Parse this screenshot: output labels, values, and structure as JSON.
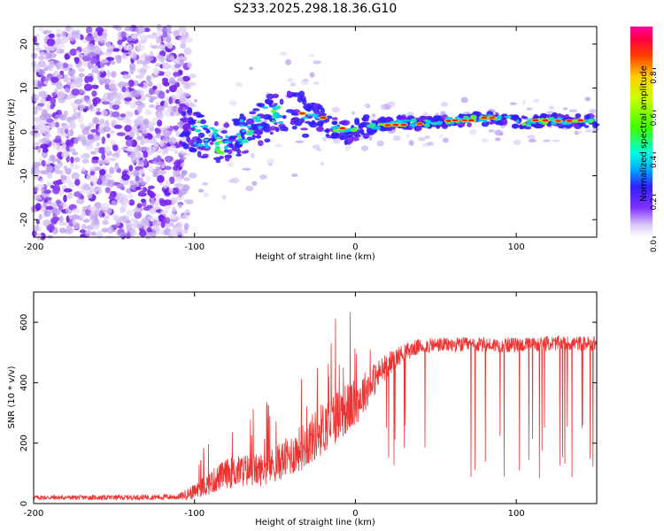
{
  "title": "S233.2025.298.18.36.G10",
  "chart_data": [
    {
      "type": "heatmap",
      "title": "S233.2025.298.18.36.G10",
      "xlabel": "Height of straight line (km)",
      "ylabel": "Frequency (Hz)",
      "xlim": [
        -200,
        150
      ],
      "ylim": [
        -24,
        24
      ],
      "x_ticks": [
        "-200",
        "-100",
        "0",
        "100"
      ],
      "x_tick_values": [
        -200,
        -100,
        0,
        100
      ],
      "y_ticks": [
        "20",
        "10",
        "0",
        "-10",
        "-20"
      ],
      "y_tick_values": [
        20,
        10,
        0,
        -10,
        -20
      ],
      "colorbar": {
        "label": "Normalized spectral amplitude",
        "range": [
          0,
          1
        ],
        "ticks": [
          "0.0",
          "0.2",
          "0.4",
          "0.6",
          "0.8"
        ],
        "tick_values": [
          0.0,
          0.2,
          0.4,
          0.6,
          0.8
        ]
      },
      "ridge": {
        "x": [
          -105,
          -95,
          -85,
          -75,
          -65,
          -55,
          -45,
          -35,
          -25,
          -15,
          -5,
          5,
          15,
          25,
          35,
          45,
          55,
          65,
          75,
          85,
          95,
          105,
          115,
          125,
          135,
          150
        ],
        "frequency": [
          1,
          -1,
          -2,
          -1,
          1,
          3,
          4,
          4,
          4,
          1,
          0,
          1,
          1.5,
          2,
          2,
          2,
          2.5,
          2.5,
          3,
          3,
          3,
          2,
          2.5,
          2.5,
          2.5,
          2.5
        ]
      }
    },
    {
      "type": "line",
      "xlabel": "Height of straight line (km)",
      "ylabel": "SNR (10 * v/v)",
      "xlim": [
        -200,
        150
      ],
      "ylim": [
        0,
        700
      ],
      "x_ticks": [
        "-200",
        "-100",
        "0",
        "100"
      ],
      "x_tick_values": [
        -200,
        -100,
        0,
        100
      ],
      "y_ticks": [
        "0",
        "200",
        "400",
        "600"
      ],
      "y_tick_values": [
        0,
        200,
        400,
        600
      ],
      "series": [
        {
          "name": "SNR",
          "color": "#ee3333",
          "envelope_x": [
            -200,
            -150,
            -110,
            -100,
            -90,
            -80,
            -70,
            -60,
            -50,
            -40,
            -30,
            -20,
            -10,
            0,
            10,
            20,
            30,
            40,
            50,
            60,
            70,
            80,
            90,
            100,
            110,
            120,
            130,
            140,
            150
          ],
          "envelope_mean": [
            20,
            20,
            22,
            40,
            70,
            100,
            110,
            110,
            130,
            160,
            200,
            250,
            300,
            330,
            400,
            460,
            500,
            520,
            525,
            525,
            525,
            525,
            525,
            525,
            525,
            530,
            530,
            530,
            530
          ],
          "envelope_noise": [
            8,
            8,
            10,
            25,
            40,
            50,
            55,
            55,
            60,
            70,
            80,
            90,
            90,
            80,
            60,
            40,
            30,
            25,
            25,
            25,
            25,
            25,
            25,
            25,
            25,
            25,
            25,
            25,
            25
          ]
        }
      ]
    }
  ]
}
